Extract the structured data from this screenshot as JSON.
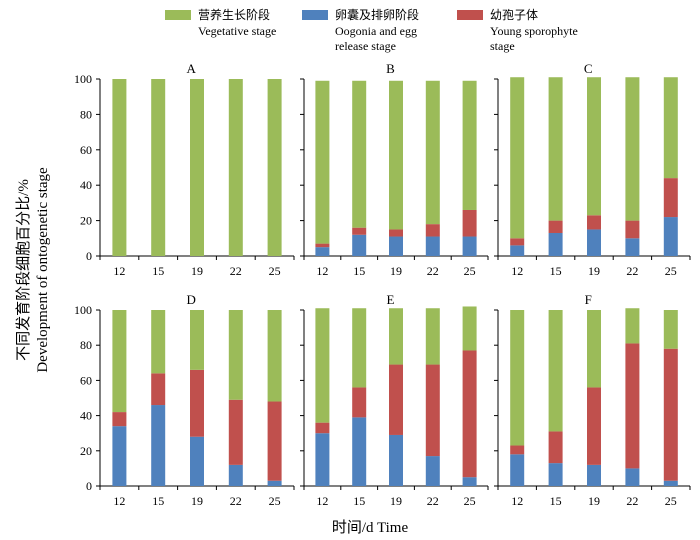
{
  "chart_data": {
    "type": "bar",
    "stacked": true,
    "xlabel": "时间/d Time",
    "ylabel": "不同发育阶段细胞百分比/%  Development of ontogenetic stage",
    "ylabel_lines": [
      "不同发育阶段细胞百分比/%",
      "Development of ontogenetic stage"
    ],
    "legend": [
      {
        "name_cn": "营养生长阶段",
        "name_en": [
          "Vegetative stage"
        ],
        "color": "#9bbb59"
      },
      {
        "name_cn": "卵囊及排卵阶段",
        "name_en": [
          "Oogonia and egg",
          "release stage"
        ],
        "color": "#4f81bd"
      },
      {
        "name_cn": "幼孢子体",
        "name_en": [
          "Young sporophyte",
          "stage"
        ],
        "color": "#c0504d"
      }
    ],
    "legend_position": "top",
    "ylim": [
      0,
      100
    ],
    "yticks": [
      0,
      20,
      40,
      60,
      80,
      100
    ],
    "categories": [
      "12",
      "15",
      "19",
      "22",
      "25"
    ],
    "panels": [
      {
        "label": "A",
        "series": [
          {
            "key": "oogonia",
            "values": [
              0,
              0,
              0,
              0,
              0
            ]
          },
          {
            "key": "young",
            "values": [
              0,
              0,
              0,
              0,
              0
            ]
          },
          {
            "key": "vegetative",
            "values": [
              100,
              100,
              100,
              100,
              100
            ]
          }
        ]
      },
      {
        "label": "B",
        "series": [
          {
            "key": "oogonia",
            "values": [
              5,
              12,
              11,
              11,
              11
            ]
          },
          {
            "key": "young",
            "values": [
              2,
              4,
              4,
              7,
              15
            ]
          },
          {
            "key": "vegetative",
            "values": [
              92,
              83,
              84,
              81,
              73
            ]
          }
        ]
      },
      {
        "label": "C",
        "series": [
          {
            "key": "oogonia",
            "values": [
              6,
              13,
              15,
              10,
              22
            ]
          },
          {
            "key": "young",
            "values": [
              4,
              7,
              8,
              10,
              22
            ]
          },
          {
            "key": "vegetative",
            "values": [
              91,
              81,
              78,
              81,
              57
            ]
          }
        ]
      },
      {
        "label": "D",
        "series": [
          {
            "key": "oogonia",
            "values": [
              34,
              46,
              28,
              12,
              3
            ]
          },
          {
            "key": "young",
            "values": [
              8,
              18,
              38,
              37,
              45
            ]
          },
          {
            "key": "vegetative",
            "values": [
              58,
              36,
              34,
              51,
              52
            ]
          }
        ]
      },
      {
        "label": "E",
        "series": [
          {
            "key": "oogonia",
            "values": [
              30,
              39,
              29,
              17,
              5
            ]
          },
          {
            "key": "young",
            "values": [
              6,
              17,
              40,
              52,
              72
            ]
          },
          {
            "key": "vegetative",
            "values": [
              65,
              45,
              32,
              32,
              25
            ]
          }
        ]
      },
      {
        "label": "F",
        "series": [
          {
            "key": "oogonia",
            "values": [
              18,
              13,
              12,
              10,
              3
            ]
          },
          {
            "key": "young",
            "values": [
              5,
              18,
              44,
              71,
              75
            ]
          },
          {
            "key": "vegetative",
            "values": [
              77,
              69,
              44,
              20,
              22
            ]
          }
        ]
      }
    ],
    "colors": {
      "vegetative": "#9bbb59",
      "oogonia": "#4f81bd",
      "young": "#c0504d"
    },
    "grid": false
  }
}
